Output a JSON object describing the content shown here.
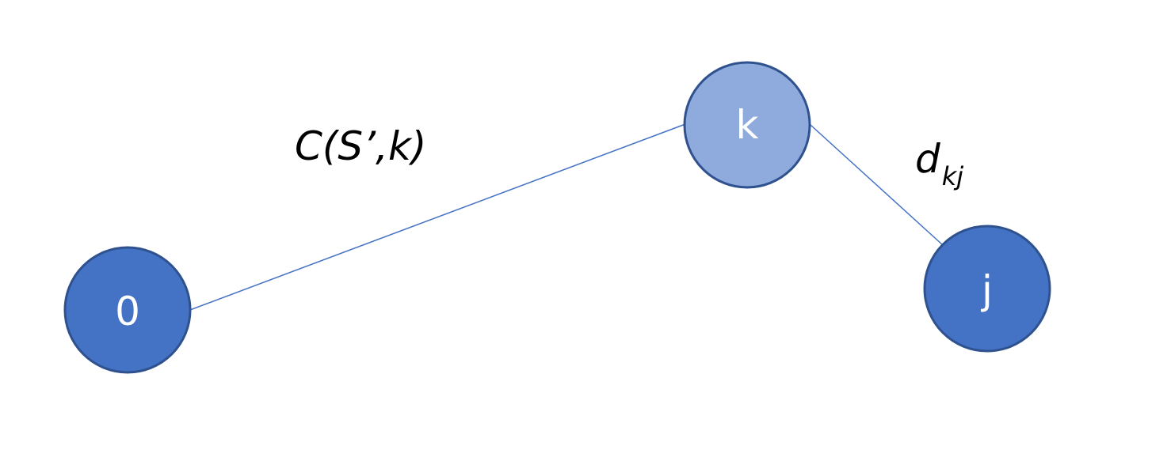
{
  "nodes": [
    {
      "id": "0",
      "label": "0",
      "fill": "#4472C4"
    },
    {
      "id": "k",
      "label": "k",
      "fill": "#8FAADC"
    },
    {
      "id": "j",
      "label": "j",
      "fill": "#4472C4"
    }
  ],
  "edges": [
    {
      "from": "0",
      "to": "k",
      "label": "C(S’,k)"
    },
    {
      "from": "k",
      "to": "j",
      "label_main": "d",
      "label_sub": "kj"
    }
  ],
  "colors": {
    "node_border": "#2F528F",
    "edge": "#4472C4"
  }
}
